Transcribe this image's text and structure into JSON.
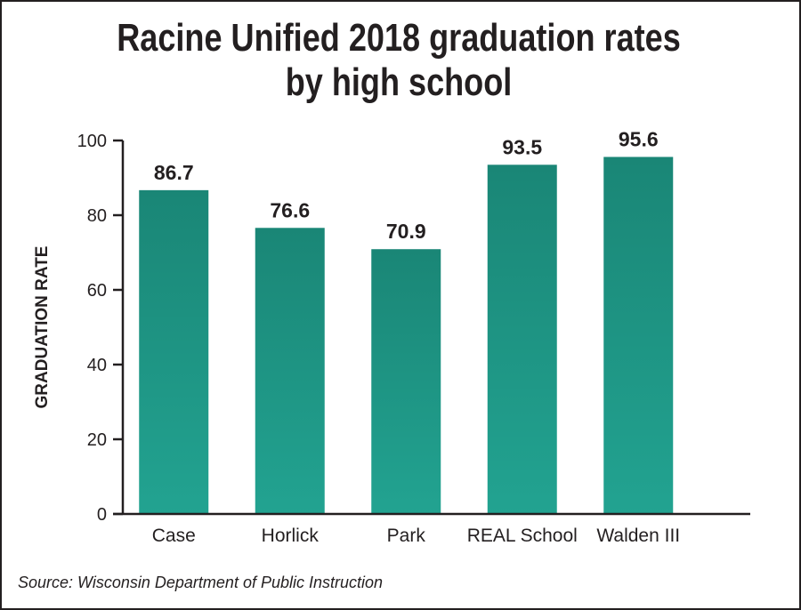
{
  "chart_data": {
    "type": "bar",
    "title_lines": [
      "Racine Unified 2018 graduation rates",
      "by high school"
    ],
    "categories": [
      "Case",
      "Horlick",
      "Park",
      "REAL School",
      "Walden III"
    ],
    "values": [
      86.7,
      76.6,
      70.9,
      93.5,
      95.6
    ],
    "data_labels": [
      "86.7",
      "76.6",
      "70.9",
      "93.5",
      "95.6"
    ],
    "ylabel": "GRADUATION RATE",
    "xlabel": "",
    "ylim": [
      0,
      100
    ],
    "yticks": [
      0,
      20,
      40,
      60,
      80,
      100
    ],
    "grid": false,
    "legend": "none",
    "bar_color_top": "#1a8676",
    "bar_color_bottom": "#22a391"
  },
  "source": "Source: Wisconsin Department of Public Instruction"
}
